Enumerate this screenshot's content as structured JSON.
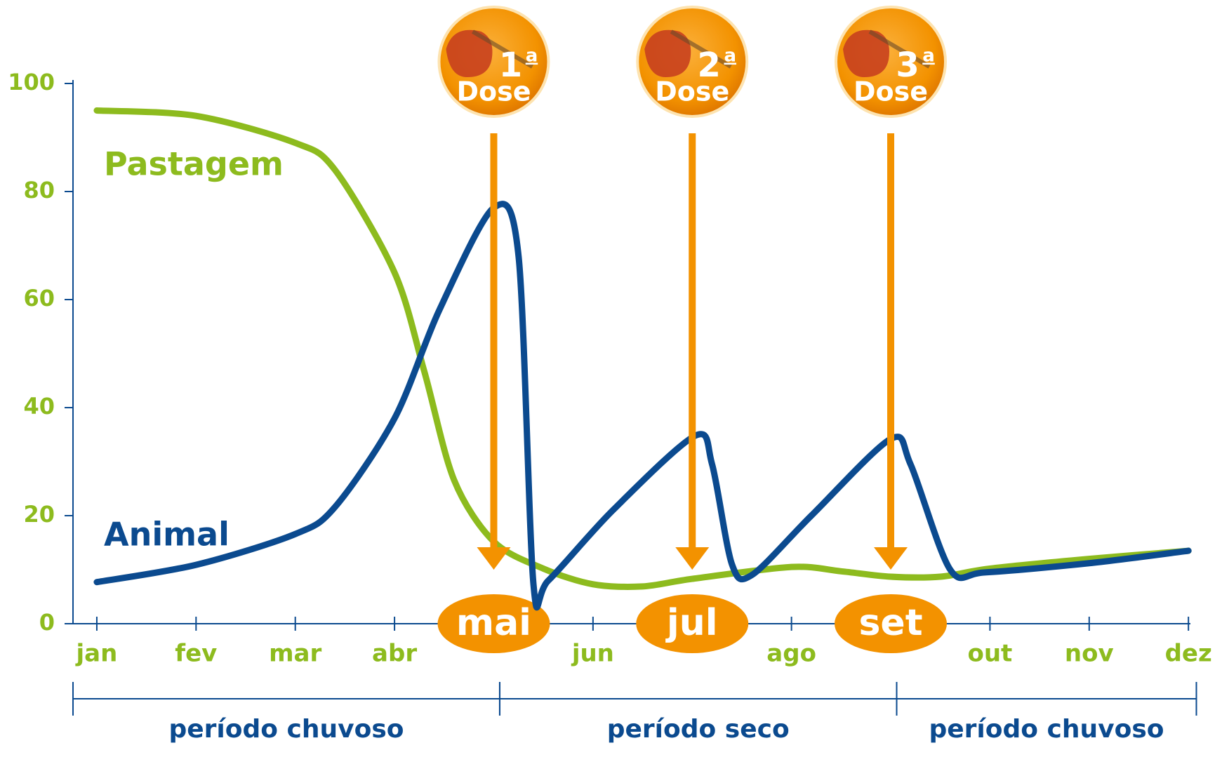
{
  "chart_data": {
    "type": "line",
    "xlim": [
      0.76,
      12.02
    ],
    "xticks": [
      {
        "value": 1,
        "label": "jan"
      },
      {
        "value": 2,
        "label": "fev"
      },
      {
        "value": 3,
        "label": "mar"
      },
      {
        "value": 4,
        "label": "abr"
      },
      {
        "value": 5,
        "label": "mai"
      },
      {
        "value": 6,
        "label": "jun"
      },
      {
        "value": 7,
        "label": "jul"
      },
      {
        "value": 8,
        "label": "ago"
      },
      {
        "value": 9,
        "label": "set"
      },
      {
        "value": 10,
        "label": "out"
      },
      {
        "value": 11,
        "label": "nov"
      },
      {
        "value": 12,
        "label": "dez"
      }
    ],
    "ylim": [
      0,
      100
    ],
    "yticks": [
      0,
      20,
      40,
      60,
      80,
      100
    ],
    "series": [
      {
        "name": "Pastagem",
        "color": "#8dbb1e",
        "x": [
          1,
          2,
          3,
          3.4,
          4,
          4.3,
          4.6,
          5,
          5.5,
          6,
          6.5,
          7,
          8,
          8.5,
          9,
          9.5,
          10,
          11,
          12
        ],
        "values": [
          95,
          94,
          89,
          84,
          65,
          46.7,
          26.6,
          15.2,
          10.2,
          7.3,
          6.9,
          8.3,
          10.5,
          9.7,
          8.7,
          8.7,
          10.2,
          12,
          13.5
        ]
      },
      {
        "name": "Animal",
        "color": "#0b4a8f",
        "x": [
          1,
          2,
          3,
          3.4,
          4,
          4.45,
          5,
          5.25,
          5.4,
          5.55,
          6.2,
          7.03,
          7.2,
          7.4,
          7.6,
          8.2,
          9,
          9.2,
          9.6,
          9.95,
          11,
          12
        ],
        "values": [
          7.7,
          10.9,
          16.6,
          21.6,
          38,
          58,
          77,
          68,
          7.3,
          8,
          21,
          34.8,
          29.5,
          11,
          9,
          20,
          34.2,
          29.5,
          10,
          9.5,
          11.2,
          13.5
        ]
      }
    ],
    "doses": [
      {
        "number": "1",
        "ordinal": "a",
        "text": "Dose",
        "x": 5
      },
      {
        "number": "2",
        "ordinal": "a",
        "text": "Dose",
        "x": 7
      },
      {
        "number": "3",
        "ordinal": "a",
        "text": "Dose",
        "x": 9
      }
    ],
    "periods": [
      {
        "label": "período chuvoso",
        "from": 0.76,
        "to": 5.06
      },
      {
        "label": "período seco",
        "from": 5.06,
        "to": 9.06
      },
      {
        "label": "período chuvoso",
        "from": 9.06,
        "to": 12.08
      }
    ]
  }
}
